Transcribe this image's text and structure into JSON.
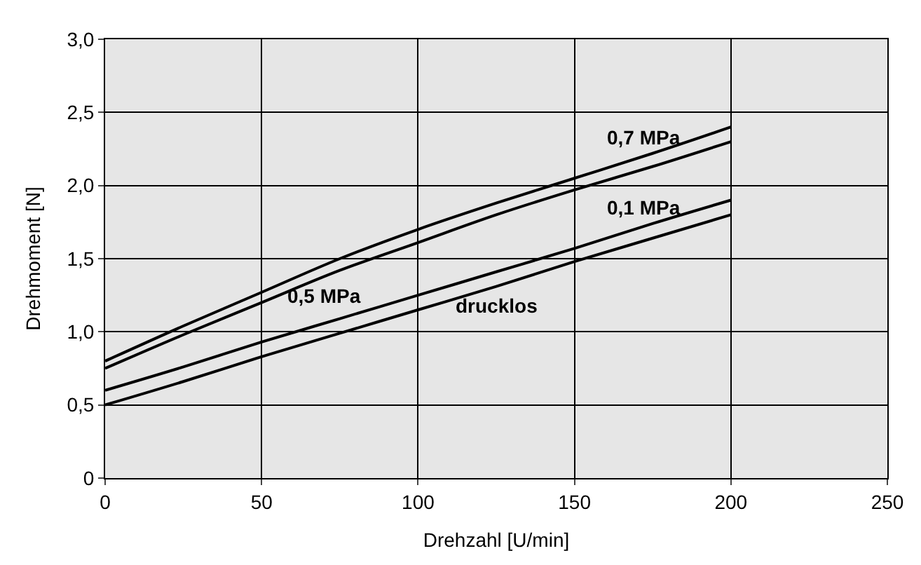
{
  "chart_data": {
    "type": "line",
    "xlabel": "Drehzahl [U/min]",
    "ylabel": "Drehmoment [N]",
    "x": [
      0,
      25,
      50,
      75,
      100,
      125,
      150,
      175,
      200
    ],
    "series": [
      {
        "name": "0,7 MPa",
        "color": "#000000",
        "values": [
          0.8,
          1.04,
          1.27,
          1.5,
          1.7,
          1.88,
          2.05,
          2.22,
          2.4
        ]
      },
      {
        "name": "0,5 MPa",
        "color": "#000000",
        "values": [
          0.75,
          0.98,
          1.2,
          1.42,
          1.61,
          1.8,
          1.97,
          2.13,
          2.3
        ]
      },
      {
        "name": "0,1 MPa",
        "color": "#000000",
        "values": [
          0.6,
          0.76,
          0.93,
          1.09,
          1.25,
          1.41,
          1.57,
          1.74,
          1.9
        ]
      },
      {
        "name": "drucklos",
        "color": "#000000",
        "values": [
          0.5,
          0.66,
          0.83,
          0.99,
          1.15,
          1.31,
          1.48,
          1.64,
          1.8
        ]
      }
    ],
    "xlim": [
      0,
      250
    ],
    "xticks": [
      0,
      50,
      100,
      150,
      200,
      250
    ],
    "ylim": [
      0,
      3.0
    ],
    "yticks": [
      {
        "value": 0,
        "label": "0"
      },
      {
        "value": 0.5,
        "label": "0,5"
      },
      {
        "value": 1.0,
        "label": "1,0"
      },
      {
        "value": 1.5,
        "label": "1,5"
      },
      {
        "value": 2.0,
        "label": "2,0"
      },
      {
        "value": 2.5,
        "label": "2,5"
      },
      {
        "value": 3.0,
        "label": "3,0"
      }
    ],
    "grid": true,
    "legend": false,
    "marker": "none",
    "line_style": "solid"
  }
}
